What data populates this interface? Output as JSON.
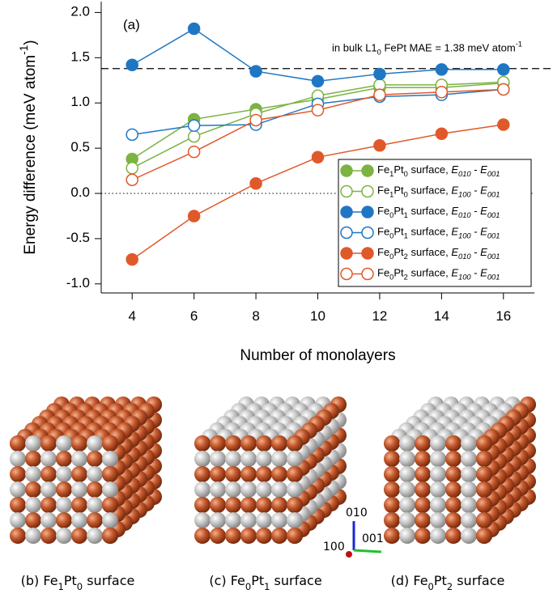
{
  "chart_data": {
    "type": "line",
    "panel_label": "(a)",
    "y_label": "Energy difference (meV atom-1)",
    "x_label": "Number of monolayers",
    "x": [
      4,
      6,
      8,
      10,
      12,
      14,
      16
    ],
    "xlim": [
      3,
      17
    ],
    "xticks": [
      4,
      6,
      8,
      10,
      12,
      14,
      16
    ],
    "ylim": [
      -1.1,
      2.12
    ],
    "yticks": [
      {
        "value": -1.0,
        "label": "-1.0"
      },
      -0.5,
      {
        "value": 0.0,
        "label": "0.0"
      },
      0.5,
      {
        "value": 1.0,
        "label": "1.0"
      },
      1.5,
      {
        "value": 2.0,
        "label": "2.0"
      }
    ],
    "reference_line": {
      "value": 1.38,
      "label": "in bulk L10 FePt  MAE = 1.38 meV atom-1"
    },
    "legend": "lower right",
    "series": [
      {
        "name": "Fe1Pt0 surface, E010 - E001",
        "color": "#7cb342",
        "filled": true,
        "values": [
          0.38,
          0.82,
          0.93,
          1.04,
          1.17,
          1.17,
          1.22
        ]
      },
      {
        "name": "Fe1Pt0 surface, E100 - E001",
        "color": "#7cb342",
        "filled": false,
        "values": [
          0.28,
          0.63,
          0.88,
          1.08,
          1.2,
          1.2,
          1.23
        ]
      },
      {
        "name": "Fe0Pt1 surface, E010 - E001",
        "color": "#1f77c4",
        "filled": true,
        "values": [
          1.42,
          1.82,
          1.35,
          1.24,
          1.32,
          1.37,
          1.37
        ]
      },
      {
        "name": "Fe0Pt1 surface, E100 - E001",
        "color": "#1f77c4",
        "filled": false,
        "values": [
          0.65,
          0.75,
          0.76,
          0.99,
          1.07,
          1.09,
          1.15
        ]
      },
      {
        "name": "Fe0Pt2 surface, E010 - E001",
        "color": "#e0592a",
        "filled": true,
        "values": [
          -0.73,
          -0.25,
          0.11,
          0.4,
          0.53,
          0.66,
          0.76
        ]
      },
      {
        "name": "Fe0Pt2 surface, E100 - E001",
        "color": "#e0592a",
        "filled": false,
        "values": [
          0.15,
          0.46,
          0.81,
          0.92,
          1.09,
          1.12,
          1.15
        ]
      }
    ]
  },
  "structures": {
    "captions": [
      "(b) Fe1Pt0 surface",
      "(c) Fe0Pt1  surface",
      "(d) Fe0Pt2  surface"
    ],
    "axes": [
      "010",
      "001",
      "100"
    ]
  }
}
